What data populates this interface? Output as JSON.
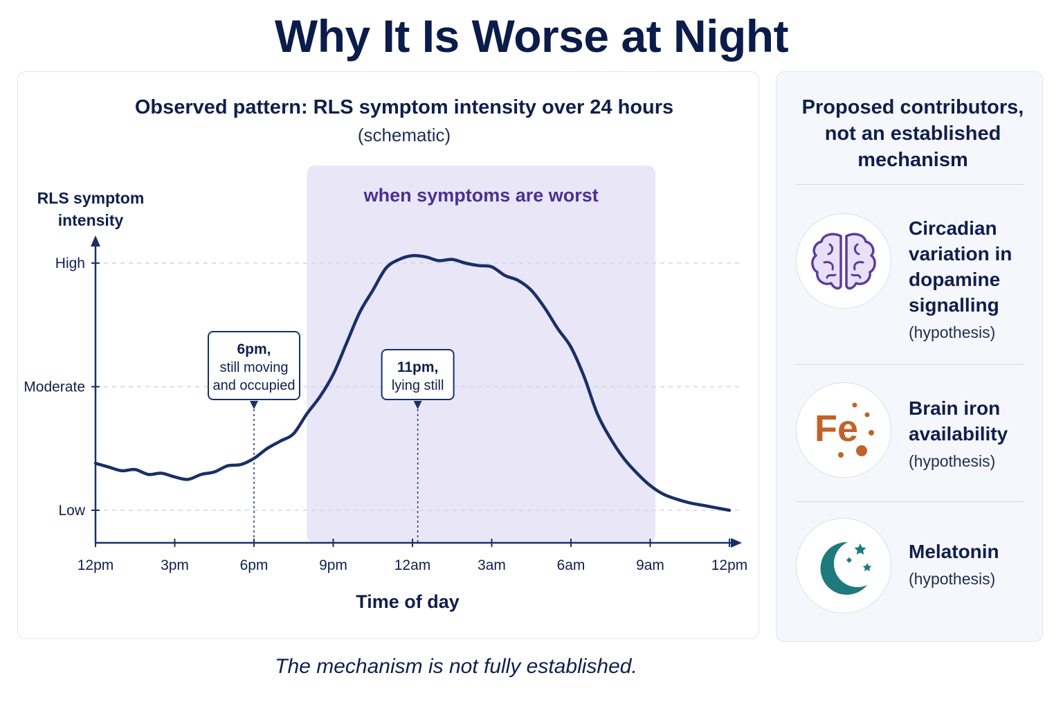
{
  "title": "Why It Is Worse at Night",
  "footnote": "The mechanism is not fully established.",
  "chart_data": {
    "type": "line",
    "title": "Observed pattern: RLS symptom intensity over 24 hours",
    "subtitle": "(schematic)",
    "ylabel_lines": [
      "RLS symptom",
      "intensity"
    ],
    "xlabel": "Time of day",
    "x_ticks": [
      "12pm",
      "3pm",
      "6pm",
      "9pm",
      "12am",
      "3am",
      "6am",
      "9am",
      "12pm"
    ],
    "y_levels": [
      {
        "label": "Low",
        "value": 0
      },
      {
        "label": "Moderate",
        "value": 1
      },
      {
        "label": "High",
        "value": 2
      }
    ],
    "grid": "dashed horizontal lines at Low, Moderate and High",
    "x_unit": "hours after 12pm",
    "xlim": [
      0,
      24
    ],
    "ylim": [
      -0.25,
      2.2
    ],
    "series": [
      {
        "color": "#1a2f66",
        "x": [
          0,
          0.5,
          1,
          1.5,
          2,
          2.5,
          3,
          3.5,
          4,
          4.5,
          5,
          5.5,
          6,
          6.5,
          7,
          7.5,
          8,
          8.5,
          9,
          9.5,
          10,
          10.5,
          11,
          11.5,
          12,
          12.5,
          13,
          13.5,
          14,
          14.5,
          15,
          15.5,
          16,
          16.5,
          17,
          17.5,
          18,
          18.5,
          19,
          19.5,
          20,
          20.5,
          21,
          21.5,
          22,
          22.5,
          23,
          23.5,
          24
        ],
        "y": [
          0.38,
          0.35,
          0.32,
          0.33,
          0.29,
          0.3,
          0.27,
          0.25,
          0.29,
          0.31,
          0.36,
          0.37,
          0.42,
          0.5,
          0.56,
          0.62,
          0.78,
          0.92,
          1.1,
          1.35,
          1.6,
          1.78,
          1.96,
          2.03,
          2.06,
          2.05,
          2.02,
          2.03,
          2.0,
          1.98,
          1.97,
          1.9,
          1.86,
          1.78,
          1.64,
          1.47,
          1.32,
          1.08,
          0.78,
          0.58,
          0.42,
          0.3,
          0.2,
          0.13,
          0.09,
          0.06,
          0.04,
          0.02,
          0.0
        ]
      }
    ],
    "highlight": {
      "label": "when symptoms are worst",
      "x_start": 8,
      "x_end": 21.2,
      "color": "#7b6fd0"
    },
    "annotations": [
      {
        "x": 6,
        "lines": [
          "6pm,",
          "still moving",
          "and occupied"
        ]
      },
      {
        "x": 12.2,
        "lines": [
          "11pm,",
          "lying still"
        ]
      }
    ]
  },
  "contributors": {
    "heading_lines": [
      "Proposed contributors,",
      "not an established",
      "mechanism"
    ],
    "items": [
      {
        "icon": "brain-icon",
        "name_lines": [
          "Circadian",
          "variation in",
          "dopamine",
          "signalling"
        ],
        "note": "(hypothesis)",
        "color": "#6a3fa7"
      },
      {
        "icon": "iron-fe-icon",
        "glyph": "Fe",
        "name_lines": [
          "Brain iron",
          "availability"
        ],
        "note": "(hypothesis)",
        "color": "#c0632a"
      },
      {
        "icon": "crescent-moon-icon",
        "name_lines": [
          "Melatonin"
        ],
        "note": "(hypothesis)",
        "color": "#1f7a7e"
      }
    ]
  }
}
